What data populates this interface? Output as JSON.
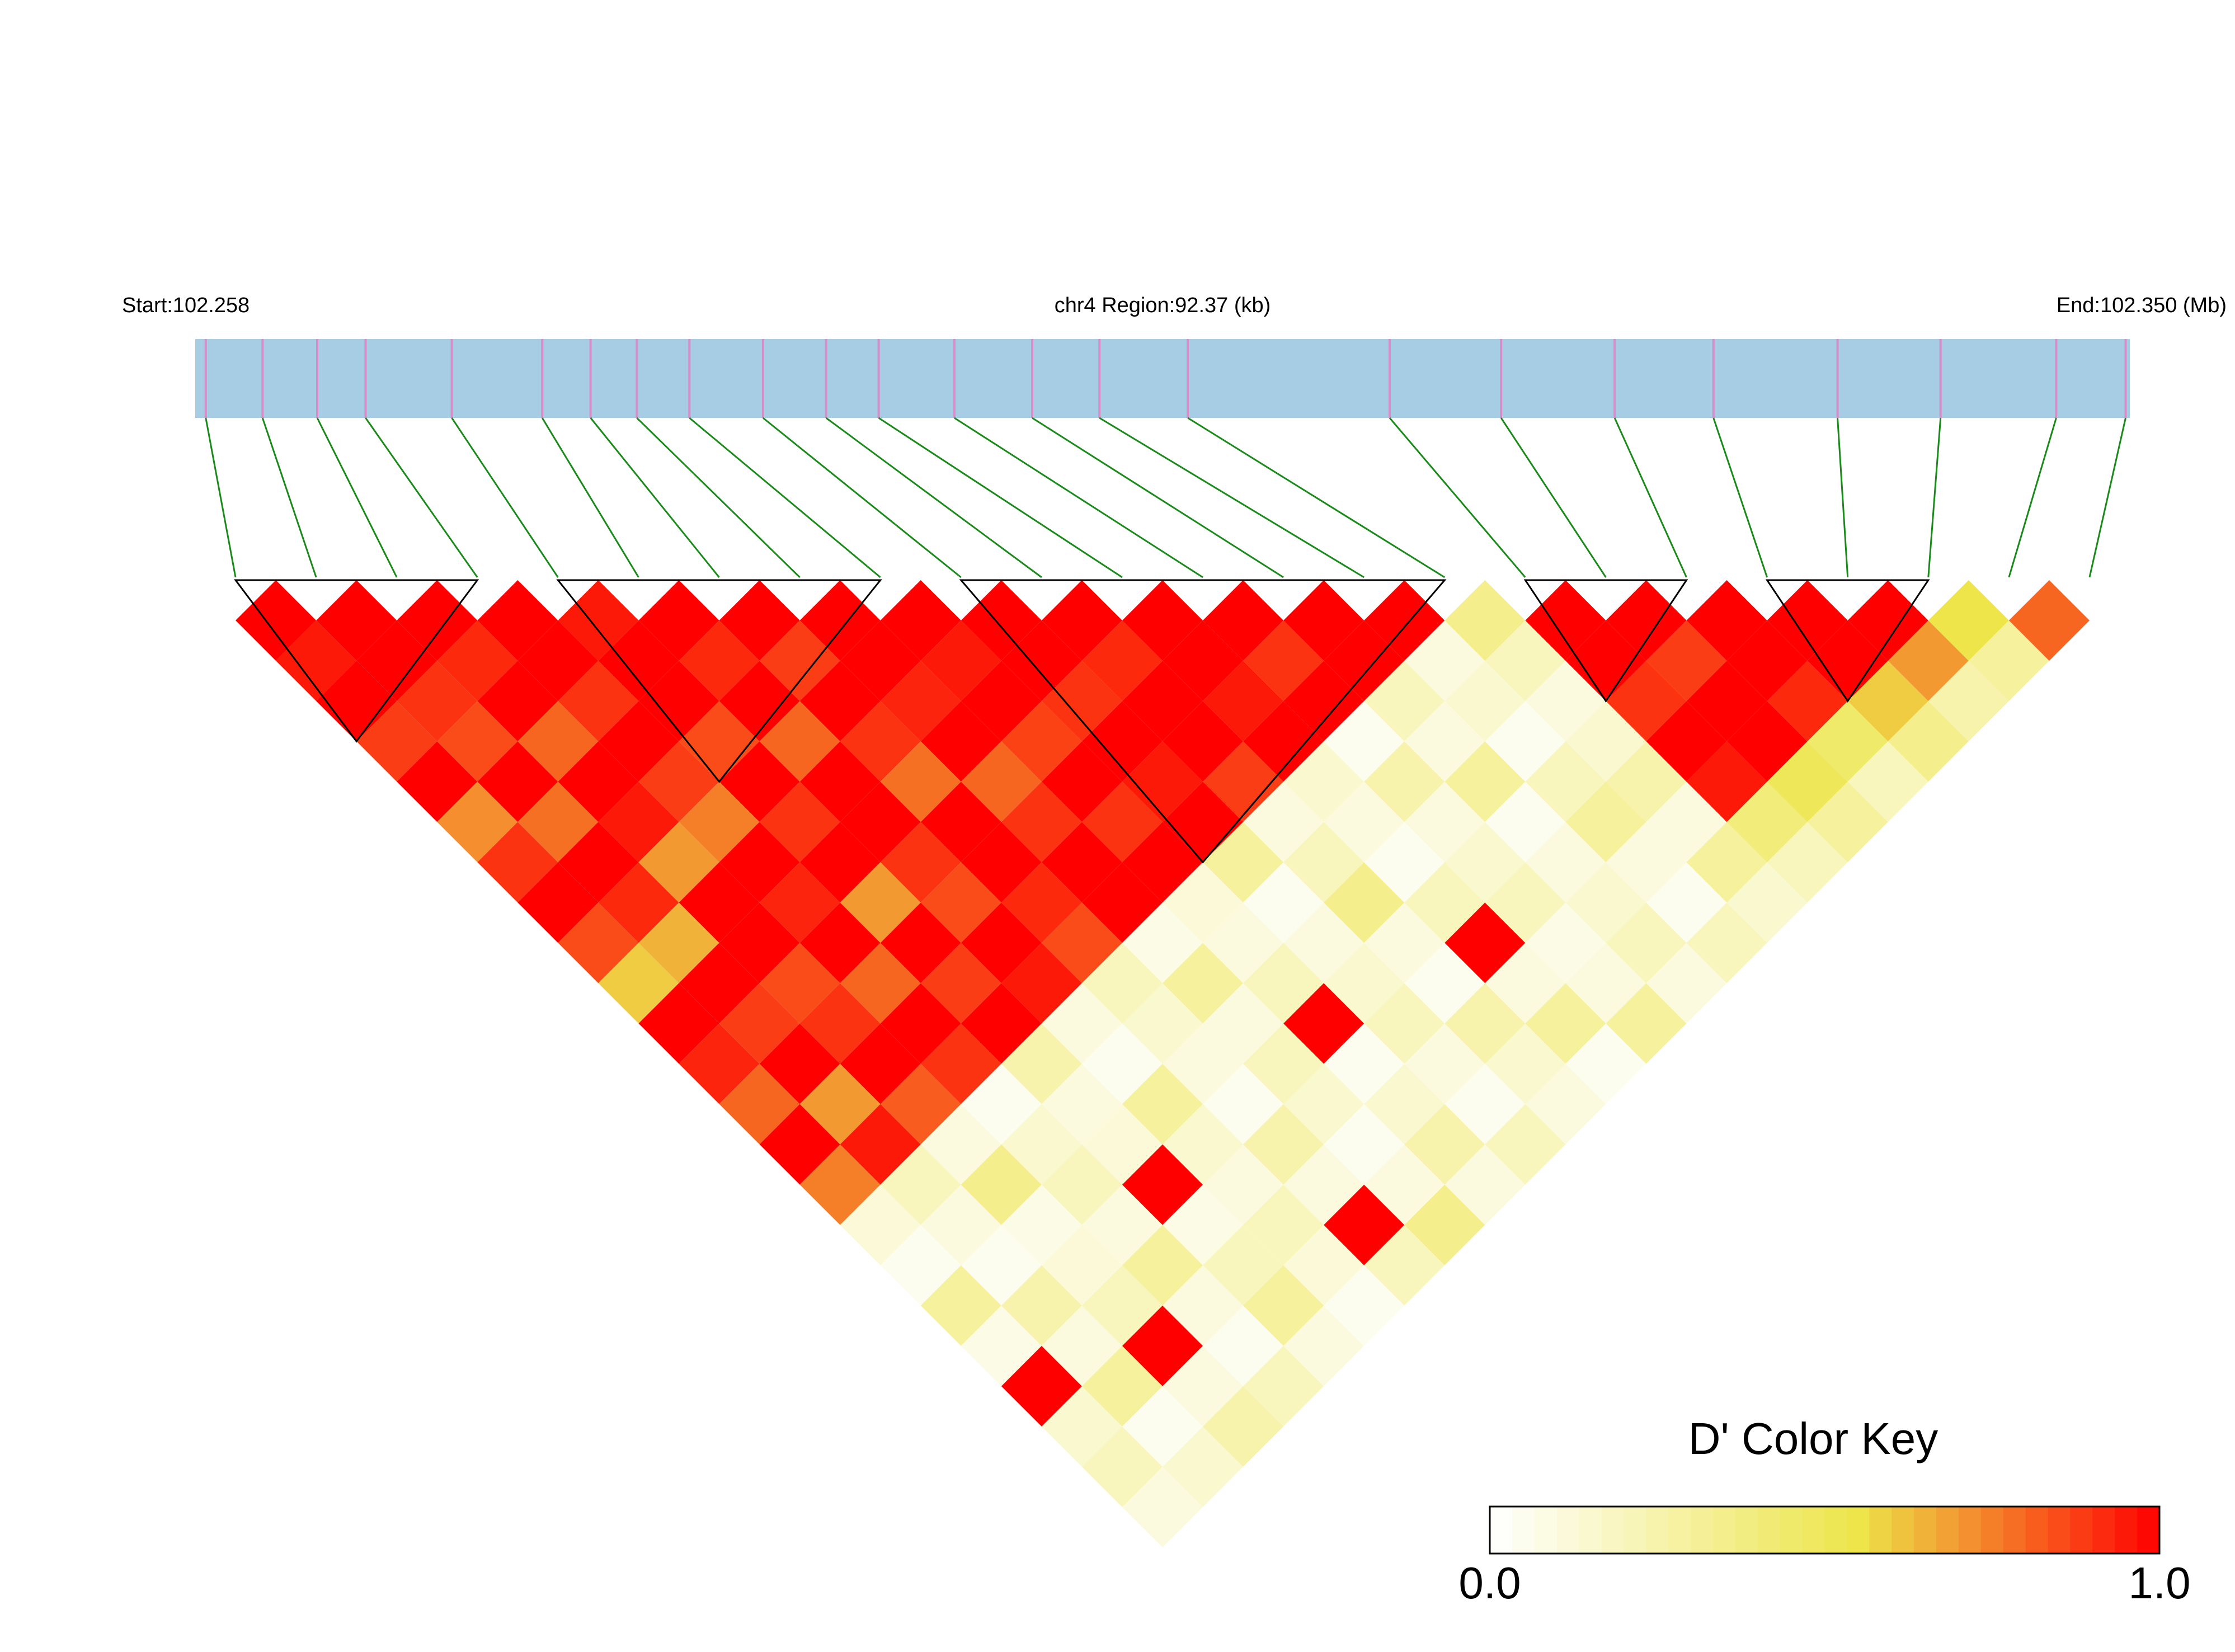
{
  "chart_data": {
    "type": "ld_heatmap",
    "start_label": "Start:102.258",
    "region_label": "chr4 Region:92.37 (kb)",
    "end_label": "End:102.350 (Mb)",
    "xlim": [
      102.258,
      102.35
    ],
    "snp_positions": [
      102.2585,
      102.2612,
      102.2638,
      102.2661,
      102.2702,
      102.2745,
      102.2768,
      102.279,
      102.2815,
      102.285,
      102.288,
      102.2905,
      102.2941,
      102.2978,
      102.301,
      102.3052,
      102.3148,
      102.3201,
      102.3255,
      102.3302,
      102.3361,
      102.341,
      102.3465,
      102.3498
    ],
    "ld": [
      [
        1,
        0.95,
        1,
        0.88,
        1,
        0.72,
        0.9,
        1,
        0.85,
        0.6,
        1,
        0.93,
        0.8,
        1,
        0.75,
        0.12,
        0.05,
        0.3,
        0.08,
        1,
        0.15,
        0.2,
        0.1
      ],
      [
        1,
        1,
        0.9,
        0.85,
        1,
        0.78,
        1,
        0.92,
        0.65,
        1,
        0.88,
        1,
        0.7,
        0.95,
        0.2,
        0.1,
        0.05,
        0.25,
        0.1,
        0.3,
        0.05,
        0.15
      ],
      [
        1,
        0.92,
        1,
        0.8,
        1,
        0.95,
        0.7,
        1,
        1,
        0.85,
        0.9,
        1,
        0.82,
        0.1,
        0.35,
        0.08,
        0.12,
        0.2,
        1,
        0.1,
        0.25
      ],
      [
        1,
        1,
        0.9,
        1,
        0.88,
        0.75,
        1,
        0.93,
        1,
        0.8,
        1,
        0.9,
        0.05,
        0.15,
        0.2,
        0.1,
        0.3,
        0.1,
        0.05,
        0.2
      ],
      [
        0.95,
        1,
        1,
        0.85,
        1,
        0.9,
        1,
        0.7,
        1,
        0.88,
        1,
        0.25,
        0.1,
        0.12,
        1,
        0.08,
        0.2,
        0.3,
        0.1
      ],
      [
        1,
        0.92,
        1,
        0.8,
        1,
        1,
        0.9,
        0.85,
        1,
        0.95,
        0.1,
        0.05,
        0.3,
        0.15,
        0.1,
        0.2,
        0.12,
        0.05
      ],
      [
        1,
        0.88,
        1,
        0.9,
        0.78,
        1,
        1,
        0.92,
        0.85,
        0.2,
        0.15,
        0.1,
        0.05,
        0.25,
        0.1,
        1,
        0.2
      ],
      [
        1,
        1,
        0.93,
        1,
        0.8,
        0.9,
        1,
        1,
        0.08,
        0.3,
        0.1,
        0.2,
        0.15,
        0.05,
        0.1,
        0.35
      ],
      [
        1,
        0.95,
        1,
        0.87,
        1,
        0.9,
        1,
        0.12,
        0.1,
        0.2,
        1,
        0.05,
        0.15,
        0.25,
        0.1
      ],
      [
        1,
        1,
        0.9,
        1,
        0.95,
        1,
        0.3,
        0.05,
        0.1,
        0.15,
        0.2,
        0.1,
        0.05,
        0.2
      ],
      [
        1,
        0.92,
        1,
        1,
        0.88,
        0.1,
        0.2,
        0.35,
        0.1,
        0.05,
        0.25,
        0.15,
        0.1
      ],
      [
        1,
        1,
        0.95,
        1,
        0.15,
        0.1,
        0.05,
        0.2,
        1,
        0.1,
        0.3,
        0.05
      ],
      [
        1,
        0.9,
        1,
        0.05,
        0.25,
        0.1,
        0.15,
        0.2,
        0.08,
        0.1,
        0.3
      ],
      [
        1,
        1,
        0.2,
        0.1,
        0.3,
        0.05,
        0.1,
        0.15,
        0.2,
        0.1
      ],
      [
        1,
        0.1,
        0.15,
        0.05,
        0.2,
        0.3,
        0.1,
        0.05,
        0.2
      ],
      [
        0.35,
        0.2,
        0.1,
        0.15,
        0.25,
        0.1,
        0.3,
        0.15
      ],
      [
        1,
        1,
        0.9,
        1,
        0.95,
        0.4,
        0.2
      ],
      [
        1,
        0.88,
        1,
        1,
        0.5,
        0.3
      ],
      [
        1,
        1,
        0.92,
        0.45,
        0.2
      ],
      [
        1,
        1,
        0.6,
        0.35
      ],
      [
        1,
        0.7,
        0.25
      ],
      [
        0.55,
        0.3
      ],
      [
        0.8
      ]
    ],
    "blocks": [
      [
        0,
        3
      ],
      [
        4,
        8
      ],
      [
        9,
        15
      ],
      [
        16,
        18
      ],
      [
        19,
        21
      ]
    ],
    "bar_color": "#a6cde3",
    "snp_color": "#d88cc8",
    "link_color": "#1a8a1a",
    "colorbar_title": "D' Color Key",
    "clim": [
      0,
      1
    ],
    "cticks": [
      {
        "value": 0,
        "label": "0.0"
      },
      {
        "value": 1,
        "label": "1.0"
      }
    ],
    "colorscale": [
      {
        "value": 0,
        "color": "#ffffff"
      },
      {
        "value": 0.55,
        "color": "#ede54a"
      },
      {
        "value": 1,
        "color": "#ff0000"
      }
    ]
  }
}
